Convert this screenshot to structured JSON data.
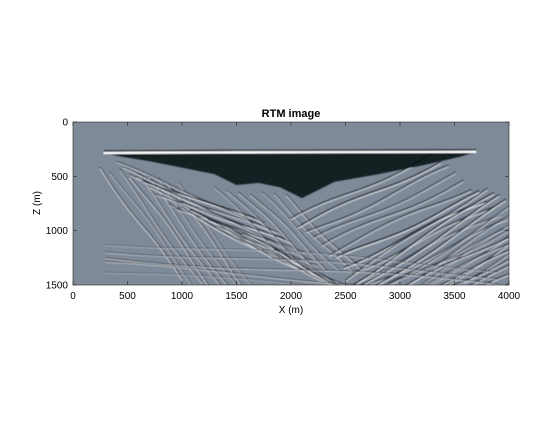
{
  "figure": {
    "background": "#ffffff"
  },
  "chart_data": {
    "type": "heatmap",
    "title": "RTM image",
    "xlabel": "X (m)",
    "ylabel": "Z (m)",
    "xlim": [
      0,
      4000
    ],
    "ylim": [
      0,
      1500
    ],
    "y_direction": "reversed",
    "x_ticks": [
      0,
      500,
      1000,
      1500,
      2000,
      2500,
      3000,
      3500,
      4000
    ],
    "y_ticks": [
      0,
      500,
      1000,
      1500
    ],
    "colormap": "gray",
    "background_color": "#7f8a99",
    "grid": false,
    "colorbar": false
  }
}
